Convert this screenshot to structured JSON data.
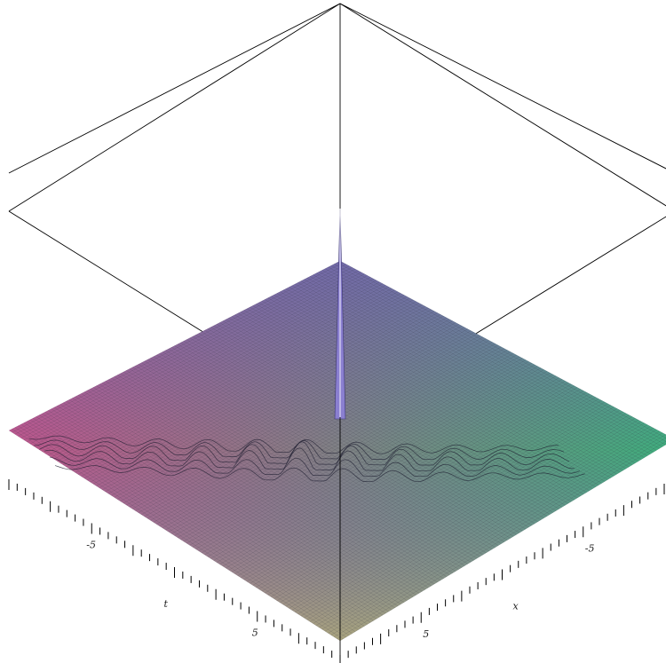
{
  "chart_data": {
    "type": "surface",
    "title": "",
    "axes": {
      "x": {
        "label": "x",
        "range": [
          -10,
          10
        ],
        "tick_labels": [
          "-5",
          "5"
        ],
        "tick_values": [
          -5,
          5
        ]
      },
      "t": {
        "label": "t",
        "range": [
          -10,
          10
        ],
        "tick_labels": [
          "-5",
          "5"
        ],
        "tick_values": [
          -5,
          5
        ]
      }
    },
    "surface": {
      "baseline": 0,
      "peak": {
        "x": 0,
        "t": 0,
        "height": 3.0
      },
      "ripple_band": {
        "direction": "x = t",
        "extent": [
          -8,
          8
        ],
        "amplitude": 0.18
      }
    },
    "grid": "mesh",
    "colors": {
      "left_corner": "#c0568c",
      "back_corner": "#6d62b4",
      "right_corner": "#3fae7d",
      "front_corner": "#b8b07c",
      "mesh": "#2a2a3a",
      "box": "#000000"
    }
  }
}
